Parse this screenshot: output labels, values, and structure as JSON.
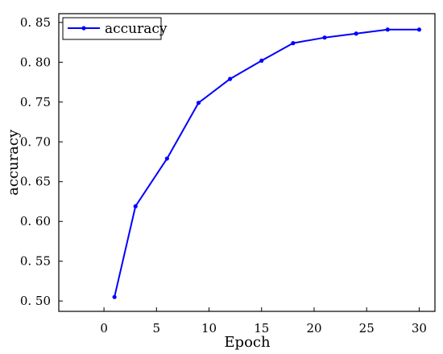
{
  "chart_data": {
    "type": "line",
    "title": "",
    "xlabel": "Epoch",
    "ylabel": "accuracy",
    "xlim": [
      -4.3,
      31.5
    ],
    "ylim": [
      0.487,
      0.861
    ],
    "x_ticks": [
      0,
      5,
      10,
      15,
      20,
      25,
      30
    ],
    "y_ticks": [
      0.5,
      0.55,
      0.6,
      0.65,
      0.7,
      0.75,
      0.8,
      0.85
    ],
    "x_tick_labels": [
      "0",
      "5",
      "10",
      "15",
      "20",
      "25",
      "30"
    ],
    "y_tick_labels": [
      "0. 50",
      "0. 55",
      "0. 60",
      "0. 65",
      "0. 70",
      "0. 75",
      "0. 80",
      "0. 85"
    ],
    "grid": false,
    "legend_position": "top-left",
    "series": [
      {
        "name": "accuracy",
        "color": "#0000ff",
        "x": [
          1,
          3,
          6,
          9,
          12,
          15,
          18,
          21,
          24,
          27,
          30
        ],
        "y": [
          0.505,
          0.619,
          0.679,
          0.749,
          0.779,
          0.802,
          0.824,
          0.831,
          0.836,
          0.841,
          0.841
        ]
      }
    ]
  }
}
